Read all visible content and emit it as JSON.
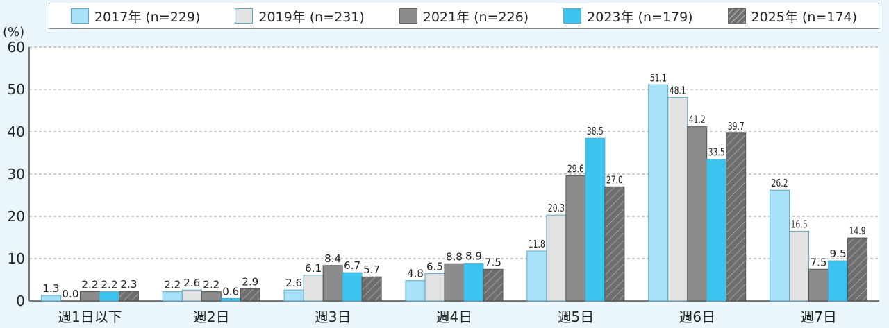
{
  "chart_data": {
    "type": "bar",
    "ylabel": "(%)",
    "ylim": [
      0,
      60
    ],
    "yticks": [
      0,
      10,
      20,
      30,
      40,
      50,
      60
    ],
    "grid": true,
    "legend_position": "top",
    "categories": [
      "週1日以下",
      "週2日",
      "週3日",
      "週4日",
      "週5日",
      "週6日",
      "週7日"
    ],
    "series": [
      {
        "name": "2017年 (n=229)",
        "color": "#a8e0f7",
        "values": [
          1.3,
          2.2,
          2.6,
          4.8,
          11.8,
          51.1,
          26.2
        ]
      },
      {
        "name": "2019年 (n=231)",
        "color": "#e2e2e2",
        "values": [
          0.0,
          2.6,
          6.1,
          6.5,
          20.3,
          48.1,
          16.5
        ]
      },
      {
        "name": "2021年 (n=226)",
        "color": "#8c8c8c",
        "values": [
          2.2,
          2.2,
          8.4,
          8.8,
          29.6,
          41.2,
          7.5
        ]
      },
      {
        "name": "2023年 (n=179)",
        "color": "#3cc4ee",
        "values": [
          2.2,
          0.6,
          6.7,
          8.9,
          38.5,
          33.5,
          9.5
        ]
      },
      {
        "name": "2025年 (n=174)",
        "color": "#6e6e6e",
        "pattern": "hatched",
        "values": [
          2.3,
          2.9,
          5.7,
          7.5,
          27.0,
          39.7,
          14.9
        ]
      }
    ]
  }
}
